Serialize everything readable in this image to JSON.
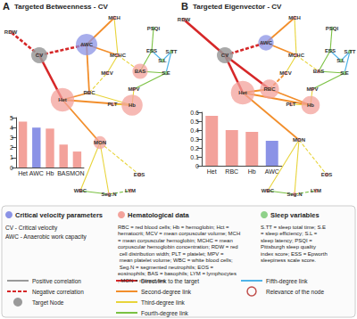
{
  "panels": [
    {
      "letter": "A",
      "title": "Targeted Betweenness - CV",
      "target": "CV",
      "nodes": [
        {
          "label": "RDW",
          "group": "hematological"
        },
        {
          "label": "CV",
          "group": "critical"
        },
        {
          "label": "AWC",
          "group": "critical"
        },
        {
          "label": "MCH",
          "group": "hematological"
        },
        {
          "label": "PSQI",
          "group": "sleep"
        },
        {
          "label": "MCHC",
          "group": "hematological"
        },
        {
          "label": "ESS",
          "group": "sleep"
        },
        {
          "label": "S.L",
          "group": "sleep"
        },
        {
          "label": "S.TT",
          "group": "sleep"
        },
        {
          "label": "S.E",
          "group": "sleep"
        },
        {
          "label": "MCV",
          "group": "hematological"
        },
        {
          "label": "BAS",
          "group": "hematological"
        },
        {
          "label": "RBC",
          "group": "hematological"
        },
        {
          "label": "MPV",
          "group": "hematological"
        },
        {
          "label": "Hb",
          "group": "hematological"
        },
        {
          "label": "Het",
          "group": "hematological"
        },
        {
          "label": "PLT",
          "group": "hematological"
        },
        {
          "label": "MON",
          "group": "hematological"
        },
        {
          "label": "WBC",
          "group": "hematological"
        },
        {
          "label": "Seg.N",
          "group": "hematological"
        },
        {
          "label": "LYM",
          "group": "hematological"
        },
        {
          "label": "EOS",
          "group": "hematological"
        }
      ],
      "edges": [
        {
          "source": "CV",
          "target": "RDW",
          "degree": 1,
          "sign": "negative"
        },
        {
          "source": "CV",
          "target": "AWC",
          "degree": 1,
          "sign": "negative"
        },
        {
          "source": "CV",
          "target": "Het",
          "degree": 1,
          "sign": "positive"
        },
        {
          "source": "AWC",
          "target": "MCH",
          "degree": 2,
          "sign": "positive"
        },
        {
          "source": "AWC",
          "target": "MCHC",
          "degree": 2,
          "sign": "positive"
        },
        {
          "source": "AWC",
          "target": "RBC",
          "degree": 2,
          "sign": "positive"
        },
        {
          "source": "Het",
          "target": "RBC",
          "degree": 2,
          "sign": "positive"
        },
        {
          "source": "Het",
          "target": "MON",
          "degree": 2,
          "sign": "positive"
        },
        {
          "source": "Het",
          "target": "Hb",
          "degree": 2,
          "sign": "positive"
        },
        {
          "source": "RBC",
          "target": "MCV",
          "degree": 3,
          "sign": "negative"
        },
        {
          "source": "RBC",
          "target": "Hb",
          "degree": 3,
          "sign": "positive"
        },
        {
          "source": "MCH",
          "target": "MCHC",
          "degree": 3,
          "sign": "positive"
        },
        {
          "source": "MCHC",
          "target": "MCV",
          "degree": 3,
          "sign": "positive"
        },
        {
          "source": "MCHC",
          "target": "BAS",
          "degree": 3,
          "sign": "negative"
        },
        {
          "source": "Hb",
          "target": "MPV",
          "degree": 3,
          "sign": "positive"
        },
        {
          "source": "Hb",
          "target": "PLT",
          "degree": 3,
          "sign": "positive"
        },
        {
          "source": "MON",
          "target": "WBC",
          "degree": 3,
          "sign": "positive"
        },
        {
          "source": "MON",
          "target": "Seg.N",
          "degree": 3,
          "sign": "positive"
        },
        {
          "source": "MON",
          "target": "EOS",
          "degree": 3,
          "sign": "negative"
        },
        {
          "source": "BAS",
          "target": "ESS",
          "degree": 4,
          "sign": "positive"
        },
        {
          "source": "BAS",
          "target": "S.E",
          "degree": 4,
          "sign": "positive"
        },
        {
          "source": "PSQI",
          "target": "ESS",
          "degree": 4,
          "sign": "positive"
        },
        {
          "source": "Seg.N",
          "target": "LYM",
          "degree": 4,
          "sign": "negative"
        },
        {
          "source": "WBC",
          "target": "Seg.N",
          "degree": 4,
          "sign": "positive"
        },
        {
          "source": "MPV",
          "target": "S.E",
          "degree": 4,
          "sign": "positive"
        },
        {
          "source": "ESS",
          "target": "S.L",
          "degree": 5,
          "sign": "positive"
        },
        {
          "source": "S.L",
          "target": "S.TT",
          "degree": 5,
          "sign": "positive"
        },
        {
          "source": "S.TT",
          "target": "S.E",
          "degree": 5,
          "sign": "positive"
        }
      ]
    },
    {
      "letter": "B",
      "title": "Targeted Eigenvector - CV",
      "target": "CV",
      "nodes": [
        {
          "label": "RDW",
          "group": "hematological"
        },
        {
          "label": "CV",
          "group": "critical"
        },
        {
          "label": "AWC",
          "group": "critical"
        },
        {
          "label": "MCH",
          "group": "hematological"
        },
        {
          "label": "PSQI",
          "group": "sleep"
        },
        {
          "label": "MCHC",
          "group": "hematological"
        },
        {
          "label": "ESS",
          "group": "sleep"
        },
        {
          "label": "S.L",
          "group": "sleep"
        },
        {
          "label": "S.TT",
          "group": "sleep"
        },
        {
          "label": "S.E",
          "group": "sleep"
        },
        {
          "label": "MCV",
          "group": "hematological"
        },
        {
          "label": "BAS",
          "group": "hematological"
        },
        {
          "label": "RBC",
          "group": "hematological"
        },
        {
          "label": "MPV",
          "group": "hematological"
        },
        {
          "label": "Hb",
          "group": "hematological"
        },
        {
          "label": "Het",
          "group": "hematological"
        },
        {
          "label": "PLT",
          "group": "hematological"
        },
        {
          "label": "MON",
          "group": "hematological"
        },
        {
          "label": "WBC",
          "group": "hematological"
        },
        {
          "label": "Seg.N",
          "group": "hematological"
        },
        {
          "label": "LYM",
          "group": "hematological"
        },
        {
          "label": "EOS",
          "group": "hematological"
        }
      ],
      "edges": [
        {
          "source": "CV",
          "target": "RDW",
          "degree": 1,
          "sign": "positive"
        },
        {
          "source": "CV",
          "target": "AWC",
          "degree": 1,
          "sign": "negative"
        },
        {
          "source": "CV",
          "target": "Het",
          "degree": 1,
          "sign": "positive"
        },
        {
          "source": "CV",
          "target": "RBC",
          "degree": 1,
          "sign": "positive"
        },
        {
          "source": "AWC",
          "target": "MCH",
          "degree": 2,
          "sign": "positive"
        },
        {
          "source": "AWC",
          "target": "MCHC",
          "degree": 2,
          "sign": "positive"
        },
        {
          "source": "Het",
          "target": "RBC",
          "degree": 2,
          "sign": "positive"
        },
        {
          "source": "Het",
          "target": "MON",
          "degree": 2,
          "sign": "positive"
        },
        {
          "source": "Het",
          "target": "Hb",
          "degree": 2,
          "sign": "positive"
        },
        {
          "source": "RBC",
          "target": "MCV",
          "degree": 2,
          "sign": "negative"
        },
        {
          "source": "RBC",
          "target": "Hb",
          "degree": 2,
          "sign": "positive"
        },
        {
          "source": "MCH",
          "target": "MCHC",
          "degree": 3,
          "sign": "positive"
        },
        {
          "source": "MCHC",
          "target": "MCV",
          "degree": 3,
          "sign": "positive"
        },
        {
          "source": "MCHC",
          "target": "BAS",
          "degree": 3,
          "sign": "negative"
        },
        {
          "source": "Hb",
          "target": "MPV",
          "degree": 3,
          "sign": "positive"
        },
        {
          "source": "Hb",
          "target": "PLT",
          "degree": 3,
          "sign": "positive"
        },
        {
          "source": "MON",
          "target": "WBC",
          "degree": 3,
          "sign": "positive"
        },
        {
          "source": "MON",
          "target": "Seg.N",
          "degree": 3,
          "sign": "positive"
        },
        {
          "source": "MON",
          "target": "EOS",
          "degree": 3,
          "sign": "negative"
        },
        {
          "source": "BAS",
          "target": "ESS",
          "degree": 4,
          "sign": "positive"
        },
        {
          "source": "BAS",
          "target": "S.E",
          "degree": 4,
          "sign": "positive"
        },
        {
          "source": "PSQI",
          "target": "ESS",
          "degree": 4,
          "sign": "positive"
        },
        {
          "source": "Seg.N",
          "target": "LYM",
          "degree": 4,
          "sign": "negative"
        },
        {
          "source": "WBC",
          "target": "Seg.N",
          "degree": 4,
          "sign": "positive"
        },
        {
          "source": "MPV",
          "target": "S.E",
          "degree": 4,
          "sign": "positive"
        },
        {
          "source": "ESS",
          "target": "S.L",
          "degree": 5,
          "sign": "positive"
        },
        {
          "source": "S.L",
          "target": "S.TT",
          "degree": 5,
          "sign": "positive"
        },
        {
          "source": "S.TT",
          "target": "S.E",
          "degree": 5,
          "sign": "positive"
        }
      ]
    }
  ],
  "chart_data": [
    {
      "type": "bar",
      "categories": [
        "Het",
        "AWC",
        "Hb",
        "BAS",
        "MON"
      ],
      "values": [
        4.6,
        4.0,
        3.9,
        2.3,
        1.6
      ],
      "colors": [
        "#f3a29b",
        "#8b93e6",
        "#f3a29b",
        "#f3a29b",
        "#f3a29b"
      ],
      "ylim": [
        0,
        5
      ],
      "yticks": [
        0,
        1,
        2,
        3,
        4,
        5
      ]
    },
    {
      "type": "bar",
      "categories": [
        "Het",
        "RBC",
        "Hb",
        "AWC"
      ],
      "values": [
        0.56,
        0.4,
        0.38,
        0.28
      ],
      "colors": [
        "#f3a29b",
        "#f3a29b",
        "#f3a29b",
        "#8b93e6"
      ],
      "ylim": [
        0,
        0.6
      ],
      "yticks": [
        0,
        0.1,
        0.2,
        0.3,
        0.4,
        0.5,
        0.6
      ]
    }
  ],
  "groups": [
    {
      "key": "critical",
      "title": "Critical velocity parameters",
      "color": "#8b93e6",
      "description": [
        "CV - Critical velocity",
        "AWC - Anaerobic work capacity"
      ]
    },
    {
      "key": "hematological",
      "title": "Hematological data",
      "color": "#f3a29b",
      "description": [
        "RBC = red blood cells; Hb = hemoglobin; Hct = hematocrit; MCV = mean corpuscular volume; MCH = mean corpuscular hemoglobin; MCHC = mean corpuscular hemoglobin concentration; RDW = red cell distribution width; PLT = platelet; MPV = mean platelet volume; WBC = white blood cells; Seg.N = segmented neutrophils; EOS = eosinophils; BAS = basophils; LYM = lymphocytes; MON = monocytes"
      ]
    },
    {
      "key": "sleep",
      "title": "Sleep variables",
      "color": "#8fd18a",
      "description": [
        "S.TT = sleep total time; S.E = sleep efficiency; S.L = sleep latency; PSQI = Pittsburgh sleep quality index score; ESS = Epworth sleepiness scale score."
      ]
    }
  ],
  "link_legend": [
    {
      "label": "Positive correlation",
      "sign": "positive",
      "color": "#9a9a9a"
    },
    {
      "label": "Negative correlation",
      "sign": "negative",
      "color": "#d62728"
    },
    {
      "label": "Target Node",
      "kind": "target",
      "color": "#9a9a9a"
    },
    {
      "label": "Direct link to the target",
      "degree": 1,
      "color": "#d62728"
    },
    {
      "label": "Second-degree link",
      "degree": 2,
      "color": "#f28e2b"
    },
    {
      "label": "Third-degree link",
      "degree": 3,
      "color": "#e8d43a"
    },
    {
      "label": "Fourth-degree link",
      "degree": 4,
      "color": "#7ac142"
    },
    {
      "label": "Fifth-degree link",
      "degree": 5,
      "color": "#4fb3e8"
    },
    {
      "label": "Relevance of the node",
      "kind": "relevance",
      "color": "#c0504d"
    }
  ]
}
